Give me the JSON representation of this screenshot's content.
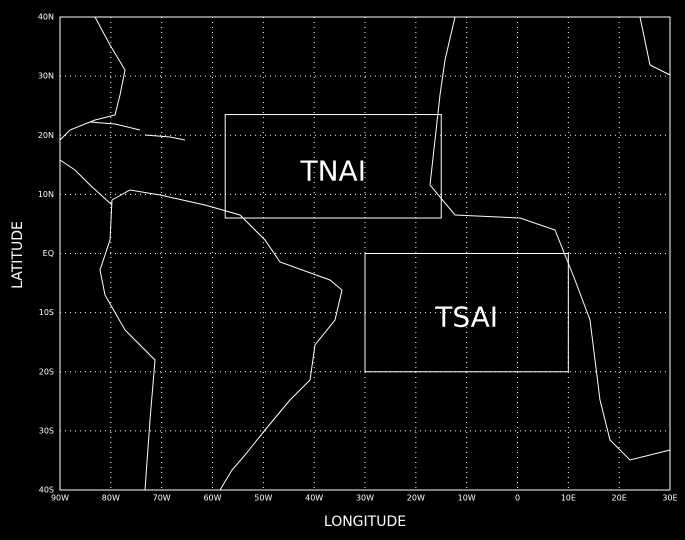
{
  "chart_data": {
    "type": "map",
    "xlabel": "LONGITUDE",
    "ylabel": "LATITUDE",
    "xlim": [
      -90,
      30
    ],
    "ylim": [
      -40,
      40
    ],
    "xticks": [
      {
        "value": -90,
        "label": "90W"
      },
      {
        "value": -80,
        "label": "80W"
      },
      {
        "value": -70,
        "label": "70W"
      },
      {
        "value": -60,
        "label": "60W"
      },
      {
        "value": -50,
        "label": "50W"
      },
      {
        "value": -40,
        "label": "40W"
      },
      {
        "value": -30,
        "label": "30W"
      },
      {
        "value": -20,
        "label": "20W"
      },
      {
        "value": -10,
        "label": "10W"
      },
      0,
      {
        "value": 10,
        "label": "10E"
      },
      {
        "value": 20,
        "label": "20E"
      },
      {
        "value": 30,
        "label": "30E"
      }
    ],
    "yticks": [
      {
        "value": -40,
        "label": "40S"
      },
      {
        "value": -30,
        "label": "30S"
      },
      {
        "value": -20,
        "label": "20S"
      },
      {
        "value": -10,
        "label": "10S"
      },
      {
        "value": 0,
        "label": "EQ"
      },
      {
        "value": 10,
        "label": "10N"
      },
      {
        "value": 20,
        "label": "20N"
      },
      {
        "value": 30,
        "label": "30N"
      },
      {
        "value": 40,
        "label": "40N"
      }
    ],
    "grid": true,
    "regions": [
      {
        "label": "TNAI",
        "lon": [
          -57.5,
          -15
        ],
        "lat": [
          6,
          23.5
        ]
      },
      {
        "label": "TSAI",
        "lon": [
          -30,
          10
        ],
        "lat": [
          -20,
          0
        ]
      }
    ]
  }
}
